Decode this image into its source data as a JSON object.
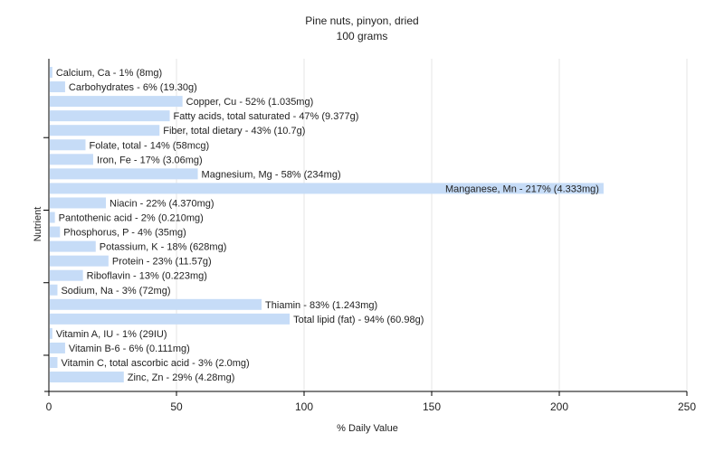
{
  "chart_data": {
    "type": "bar",
    "orientation": "horizontal",
    "title": "Pine nuts, pinyon, dried",
    "subtitle": "100 grams",
    "xlabel": "% Daily Value",
    "ylabel": "Nutrient",
    "xlim": [
      0,
      250
    ],
    "xticks": [
      0,
      50,
      100,
      150,
      200,
      250
    ],
    "grid": true,
    "bar_color": "#c6dcf7",
    "categories": [
      "Calcium, Ca",
      "Carbohydrates",
      "Copper, Cu",
      "Fatty acids, total saturated",
      "Fiber, total dietary",
      "Folate, total",
      "Iron, Fe",
      "Magnesium, Mg",
      "Manganese, Mn",
      "Niacin",
      "Pantothenic acid",
      "Phosphorus, P",
      "Potassium, K",
      "Protein",
      "Riboflavin",
      "Sodium, Na",
      "Thiamin",
      "Total lipid (fat)",
      "Vitamin A, IU",
      "Vitamin B-6",
      "Vitamin C, total ascorbic acid",
      "Zinc, Zn"
    ],
    "values": [
      1,
      6,
      52,
      47,
      43,
      14,
      17,
      58,
      217,
      22,
      2,
      4,
      18,
      23,
      13,
      3,
      83,
      94,
      1,
      6,
      3,
      29
    ],
    "labels": [
      "Calcium, Ca - 1% (8mg)",
      "Carbohydrates - 6% (19.30g)",
      "Copper, Cu - 52% (1.035mg)",
      "Fatty acids, total saturated - 47% (9.377g)",
      "Fiber, total dietary - 43% (10.7g)",
      "Folate, total - 14% (58mcg)",
      "Iron, Fe - 17% (3.06mg)",
      "Magnesium, Mg - 58% (234mg)",
      "Manganese, Mn - 217% (4.333mg)",
      "Niacin - 22% (4.370mg)",
      "Pantothenic acid - 2% (0.210mg)",
      "Phosphorus, P - 4% (35mg)",
      "Potassium, K - 18% (628mg)",
      "Protein - 23% (11.57g)",
      "Riboflavin - 13% (0.223mg)",
      "Sodium, Na - 3% (72mg)",
      "Thiamin - 83% (1.243mg)",
      "Total lipid (fat) - 94% (60.98g)",
      "Vitamin A, IU - 1% (29IU)",
      "Vitamin B-6 - 6% (0.111mg)",
      "Vitamin C, total ascorbic acid - 3% (2.0mg)",
      "Zinc, Zn - 29% (4.28mg)"
    ]
  }
}
